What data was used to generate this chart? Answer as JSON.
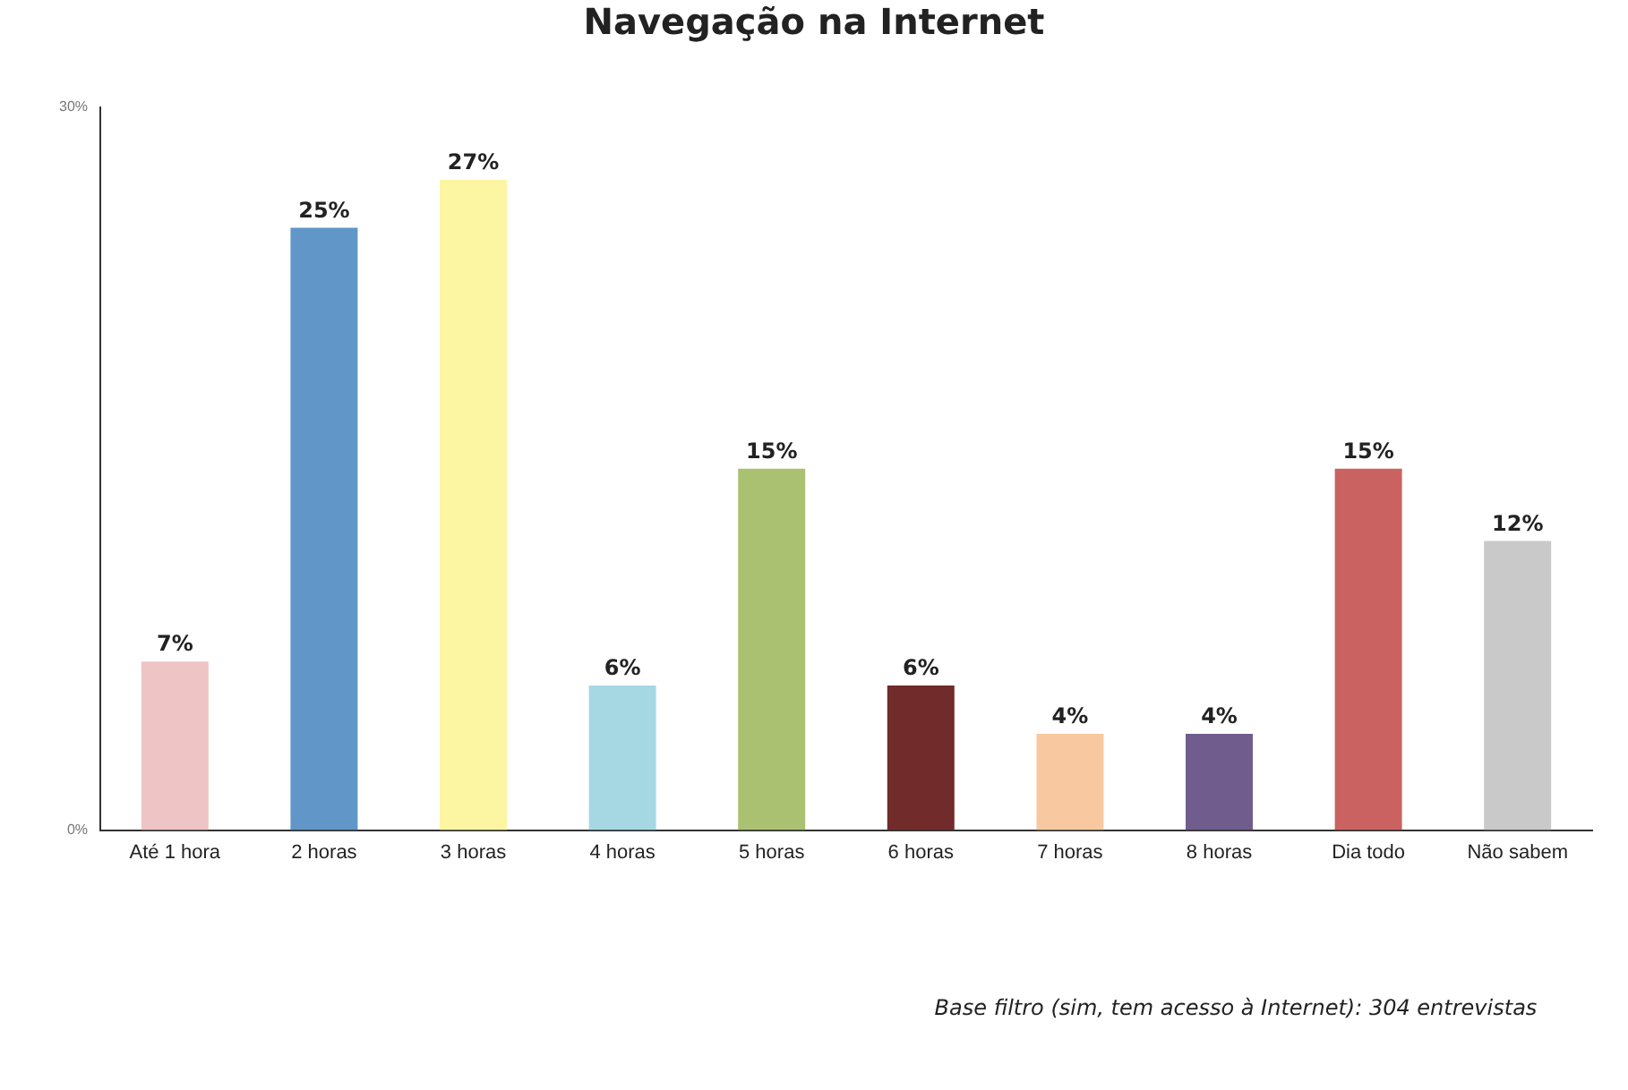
{
  "chart_data": {
    "type": "bar",
    "title": "Navegação na Internet",
    "categories": [
      "Até 1 hora",
      "2 horas",
      "3 horas",
      "4 horas",
      "5 horas",
      "6 horas",
      "7 horas",
      "8 horas",
      "Dia todo",
      "Não sabem"
    ],
    "values": [
      7,
      25,
      27,
      6,
      15,
      6,
      4,
      4,
      15,
      12
    ],
    "colors": [
      "#efc4c4",
      "#6096c8",
      "#fcf5a2",
      "#a6d8e4",
      "#a9c171",
      "#722b2b",
      "#f8c9a0",
      "#705d8d",
      "#c96260",
      "#c9c9c9"
    ],
    "value_labels": [
      "7%",
      "25%",
      "27%",
      "6%",
      "15%",
      "6%",
      "4%",
      "4%",
      "15%",
      "12%"
    ],
    "ylim": [
      0,
      30
    ],
    "yticks": [
      {
        "value": 0,
        "label": "0%"
      },
      {
        "value": 30,
        "label": "30%"
      }
    ],
    "grid": false,
    "legend": false,
    "annotations": [
      "Base filtro (sim, tem acesso à Internet): 304 entrevistas"
    ]
  }
}
